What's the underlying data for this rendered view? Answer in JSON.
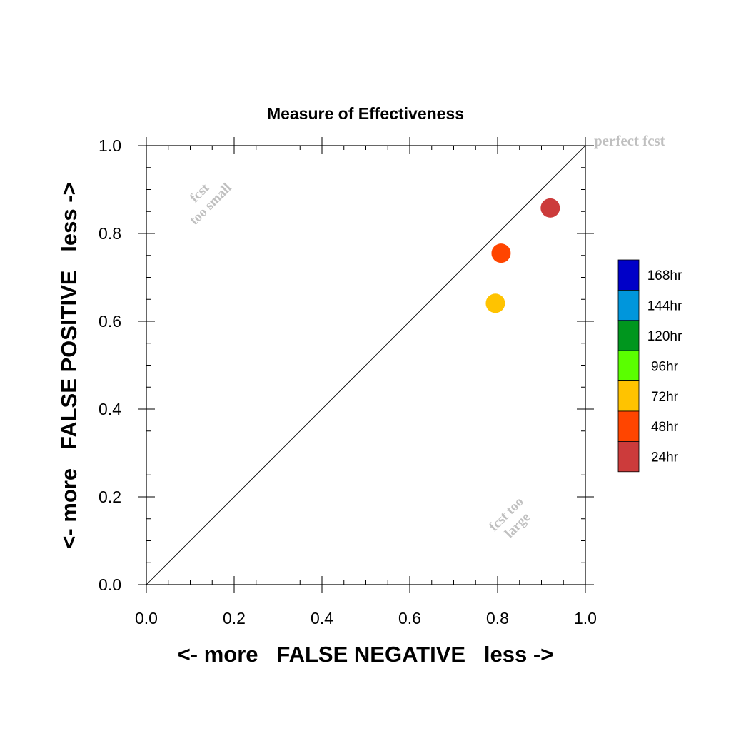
{
  "chart_data": {
    "type": "scatter",
    "title": "Measure of Effectiveness",
    "xlabel": "<- more   FALSE NEGATIVE   less ->",
    "ylabel": "<- more   FALSE POSITIVE   less ->",
    "xlim": [
      0.0,
      1.0
    ],
    "ylim": [
      0.0,
      1.0
    ],
    "x_ticks": [
      0.0,
      0.2,
      0.4,
      0.6,
      0.8,
      1.0
    ],
    "y_ticks": [
      0.0,
      0.2,
      0.4,
      0.6,
      0.8,
      1.0
    ],
    "x_tick_labels": [
      "0.0",
      "0.2",
      "0.4",
      "0.6",
      "0.8",
      "1.0"
    ],
    "y_tick_labels": [
      "0.0",
      "0.2",
      "0.4",
      "0.6",
      "0.8",
      "1.0"
    ],
    "grid": false,
    "reference_line": {
      "from": [
        0.0,
        0.0
      ],
      "to": [
        1.0,
        1.0
      ]
    },
    "annotations": {
      "perfect": "perfect fcst",
      "small_line1": "fcst",
      "small_line2": "too small",
      "large_line1": "fcst too",
      "large_line2": "large"
    },
    "points": [
      {
        "series": "24hr",
        "x": 0.92,
        "y": 0.858,
        "color": "#cc3b3b"
      },
      {
        "series": "48hr",
        "x": 0.808,
        "y": 0.755,
        "color": "#ff4500"
      },
      {
        "series": "72hr",
        "x": 0.795,
        "y": 0.641,
        "color": "#ffc300"
      }
    ],
    "legend": {
      "placement": "right",
      "entries": [
        {
          "label": "168hr",
          "color": "#0000c8"
        },
        {
          "label": "144hr",
          "color": "#0096dc"
        },
        {
          "label": "120hr",
          "color": "#00961e"
        },
        {
          "label": "96hr",
          "color": "#5aff00"
        },
        {
          "label": "72hr",
          "color": "#ffc300"
        },
        {
          "label": "48hr",
          "color": "#ff4500"
        },
        {
          "label": "24hr",
          "color": "#cc3b3b"
        }
      ]
    }
  }
}
